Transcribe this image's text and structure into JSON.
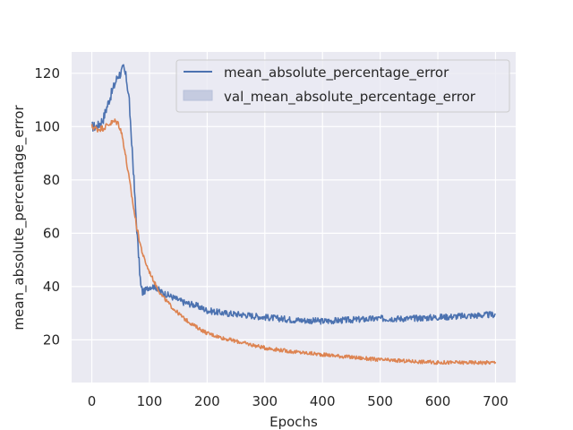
{
  "chart_data": {
    "type": "line",
    "title": "",
    "xlabel": "Epochs",
    "ylabel": "mean_absolute_percentage_error",
    "xlim": [
      -35,
      735
    ],
    "ylim": [
      4,
      128
    ],
    "xticks": [
      0,
      100,
      200,
      300,
      400,
      500,
      600,
      700
    ],
    "yticks": [
      20,
      40,
      60,
      80,
      100,
      120
    ],
    "grid": true,
    "legend_position": "top-right",
    "style": "seaborn-darkgrid",
    "colors": {
      "background": "#eaeaf2",
      "grid": "#ffffff"
    },
    "series": [
      {
        "name": "mean_absolute_percentage_error",
        "color": "#4c72b0",
        "legend_marker": "line",
        "noise": 1.2,
        "x": [
          0,
          10,
          20,
          30,
          40,
          45,
          50,
          55,
          60,
          65,
          68,
          70,
          75,
          80,
          85,
          88,
          90,
          95,
          100,
          110,
          120,
          140,
          160,
          180,
          200,
          230,
          260,
          300,
          350,
          400,
          450,
          500,
          550,
          600,
          650,
          700
        ],
        "y": [
          100,
          100,
          103,
          110,
          116,
          119,
          120,
          122,
          118,
          110,
          96,
          92,
          72,
          55,
          40,
          38,
          38,
          39,
          40,
          40,
          38,
          36,
          34,
          33,
          31,
          30,
          29.5,
          28.5,
          27.5,
          27,
          27.5,
          28,
          28,
          28.5,
          29,
          29.5
        ]
      },
      {
        "name": "val_mean_absolute_percentage_error",
        "color": "#dd8452",
        "legend_marker": "patch",
        "legend_color": "#c5cbe0",
        "noise": 0.7,
        "x": [
          0,
          10,
          20,
          30,
          40,
          45,
          50,
          55,
          60,
          65,
          70,
          75,
          80,
          85,
          90,
          95,
          100,
          110,
          120,
          140,
          160,
          180,
          200,
          230,
          260,
          300,
          350,
          400,
          450,
          500,
          550,
          600,
          650,
          700
        ],
        "y": [
          100,
          99,
          99.5,
          101,
          102,
          101.5,
          99,
          94,
          87,
          80,
          73,
          66,
          60,
          55,
          51,
          48,
          45.5,
          41,
          37,
          32,
          28,
          25,
          22.5,
          20.5,
          19,
          17,
          15.5,
          14.5,
          13.5,
          12.5,
          12,
          11.5,
          11.5,
          11.5
        ]
      }
    ]
  }
}
